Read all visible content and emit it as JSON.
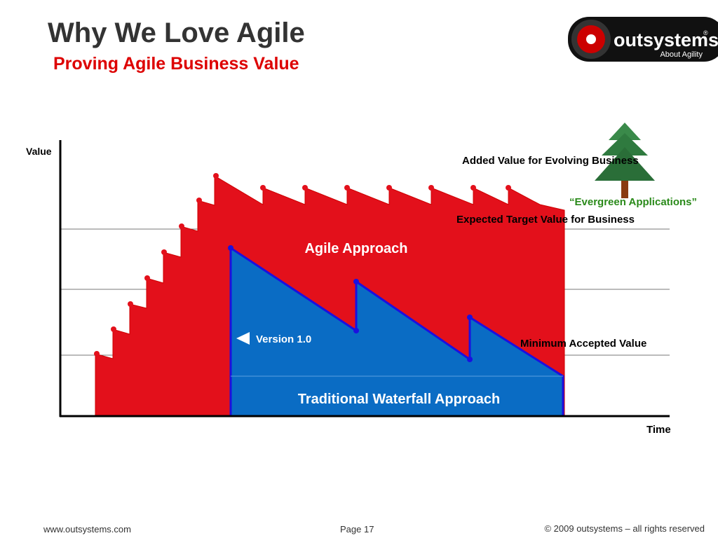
{
  "header": {
    "title": "Why We Love Agile",
    "subtitle": "Proving Agile Business Value"
  },
  "logo": {
    "name": "outsystems",
    "registered": "®",
    "tagline": "About Agility"
  },
  "diagram": {
    "y_axis_label": "Value",
    "x_axis_label": "Time",
    "added_value": "Added Value for Evolving Business",
    "evergreen": "“Evergreen Applications”",
    "expected_target": "Expected Target Value for Business",
    "agile": "Agile Approach",
    "version": "Version 1.0",
    "minimum": "Minimum Accepted Value",
    "waterfall": "Traditional Waterfall Approach"
  },
  "footer": {
    "url": "www.outsystems.com",
    "page": "Page 17",
    "copyright": "© 2009 outsystems – all rights reserved"
  }
}
